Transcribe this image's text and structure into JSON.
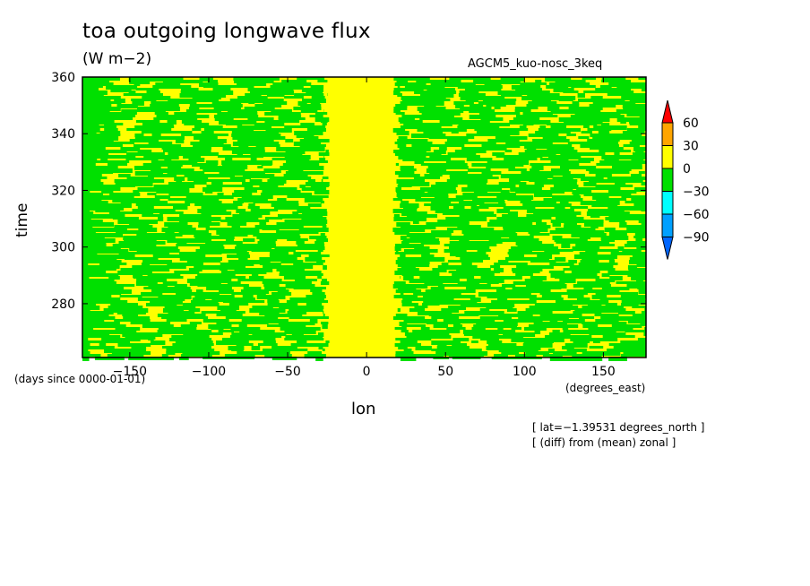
{
  "title": "toa outgoing longwave flux",
  "units": "(W m−2)",
  "run_label": "AGCM5_kuo-nosc_3keq",
  "chart_data": {
    "type": "heatmap",
    "xlabel": "lon",
    "xunits": "(degrees_east)",
    "ylabel": "time",
    "yunits": "(days since 0000-01-01)",
    "xlim": [
      -180,
      177
    ],
    "ylim": [
      261,
      360
    ],
    "xticks": [
      -150,
      -100,
      -50,
      0,
      50,
      100,
      150
    ],
    "xtick_labels": [
      "−150",
      "−100",
      "−50",
      "0",
      "50",
      "100",
      "150"
    ],
    "yticks": [
      280,
      300,
      320,
      340,
      360
    ],
    "ytick_labels": [
      "280",
      "300",
      "320",
      "340",
      "360"
    ],
    "colorbar": {
      "levels": [
        "60",
        "30",
        "0",
        "−30",
        "−60",
        "−90"
      ],
      "colors": [
        "#ff0000",
        "#ffa500",
        "#ffff00",
        "#00e000",
        "#00ffff",
        "#00a0ff",
        "#0066ff"
      ]
    },
    "description_fill": {
      "central_band_lon": [
        -20,
        12
      ],
      "dominant_classes": [
        "0 to 30",
        "-30 to 0"
      ]
    }
  },
  "notes": [
    "[ lat=−1.39531 degrees_north ]",
    "[ (diff) from (mean) zonal ]"
  ]
}
